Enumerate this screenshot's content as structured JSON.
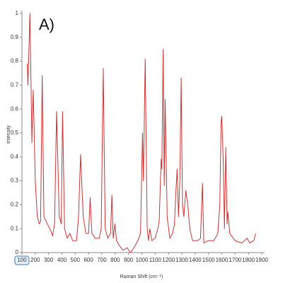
{
  "chart_data": {
    "type": "line",
    "annotation": "A)",
    "xlabel": "Raman Shift (cm⁻¹)",
    "ylabel": "Intensity",
    "color": "#cc3333",
    "xlim": [
      100,
      1900
    ],
    "ylim": [
      0,
      1
    ],
    "xticks": [
      100,
      200,
      300,
      400,
      500,
      600,
      700,
      800,
      900,
      1000,
      1100,
      1200,
      1300,
      1400,
      1500,
      1600,
      1700,
      1800,
      1900
    ],
    "yticks": [
      0,
      0.1,
      0.2,
      0.3,
      0.4,
      0.5,
      0.6,
      0.7,
      0.8,
      0.9,
      1
    ],
    "x": [
      140,
      145,
      160,
      175,
      185,
      200,
      215,
      230,
      240,
      252,
      265,
      290,
      310,
      330,
      345,
      360,
      380,
      395,
      405,
      420,
      440,
      460,
      480,
      510,
      525,
      540,
      560,
      580,
      600,
      612,
      625,
      650,
      680,
      695,
      710,
      725,
      745,
      765,
      775,
      785,
      798,
      810,
      830,
      860,
      890,
      915,
      940,
      970,
      990,
      1005,
      1012,
      1025,
      1040,
      1050,
      1060,
      1075,
      1100,
      1120,
      1130,
      1145,
      1150,
      1160,
      1168,
      1175,
      1190,
      1210,
      1230,
      1245,
      1255,
      1265,
      1275,
      1285,
      1295,
      1305,
      1315,
      1330,
      1345,
      1360,
      1380,
      1420,
      1440,
      1455,
      1465,
      1500,
      1540,
      1570,
      1585,
      1595,
      1600,
      1610,
      1620,
      1630,
      1640,
      1645,
      1660,
      1700,
      1750,
      1790,
      1810,
      1840,
      1855
    ],
    "values": [
      0.79,
      0.7,
      1.0,
      0.46,
      0.68,
      0.3,
      0.15,
      0.12,
      0.13,
      0.74,
      0.15,
      0.12,
      0.1,
      0.07,
      0.12,
      0.59,
      0.15,
      0.12,
      0.59,
      0.1,
      0.06,
      0.08,
      0.05,
      0.05,
      0.15,
      0.41,
      0.15,
      0.08,
      0.08,
      0.23,
      0.08,
      0.06,
      0.06,
      0.1,
      0.77,
      0.1,
      0.06,
      0.08,
      0.24,
      0.06,
      0.12,
      0.05,
      0.03,
      0.01,
      0.02,
      0.0,
      0.02,
      0.05,
      0.08,
      0.5,
      0.3,
      0.81,
      0.1,
      0.05,
      0.1,
      0.05,
      0.06,
      0.1,
      0.13,
      0.39,
      0.35,
      0.85,
      0.28,
      0.64,
      0.15,
      0.06,
      0.08,
      0.12,
      0.25,
      0.35,
      0.15,
      0.3,
      0.73,
      0.2,
      0.15,
      0.26,
      0.2,
      0.1,
      0.05,
      0.05,
      0.06,
      0.29,
      0.04,
      0.05,
      0.05,
      0.08,
      0.2,
      0.55,
      0.57,
      0.4,
      0.1,
      0.44,
      0.12,
      0.17,
      0.08,
      0.05,
      0.04,
      0.06,
      0.04,
      0.05,
      0.08
    ]
  }
}
